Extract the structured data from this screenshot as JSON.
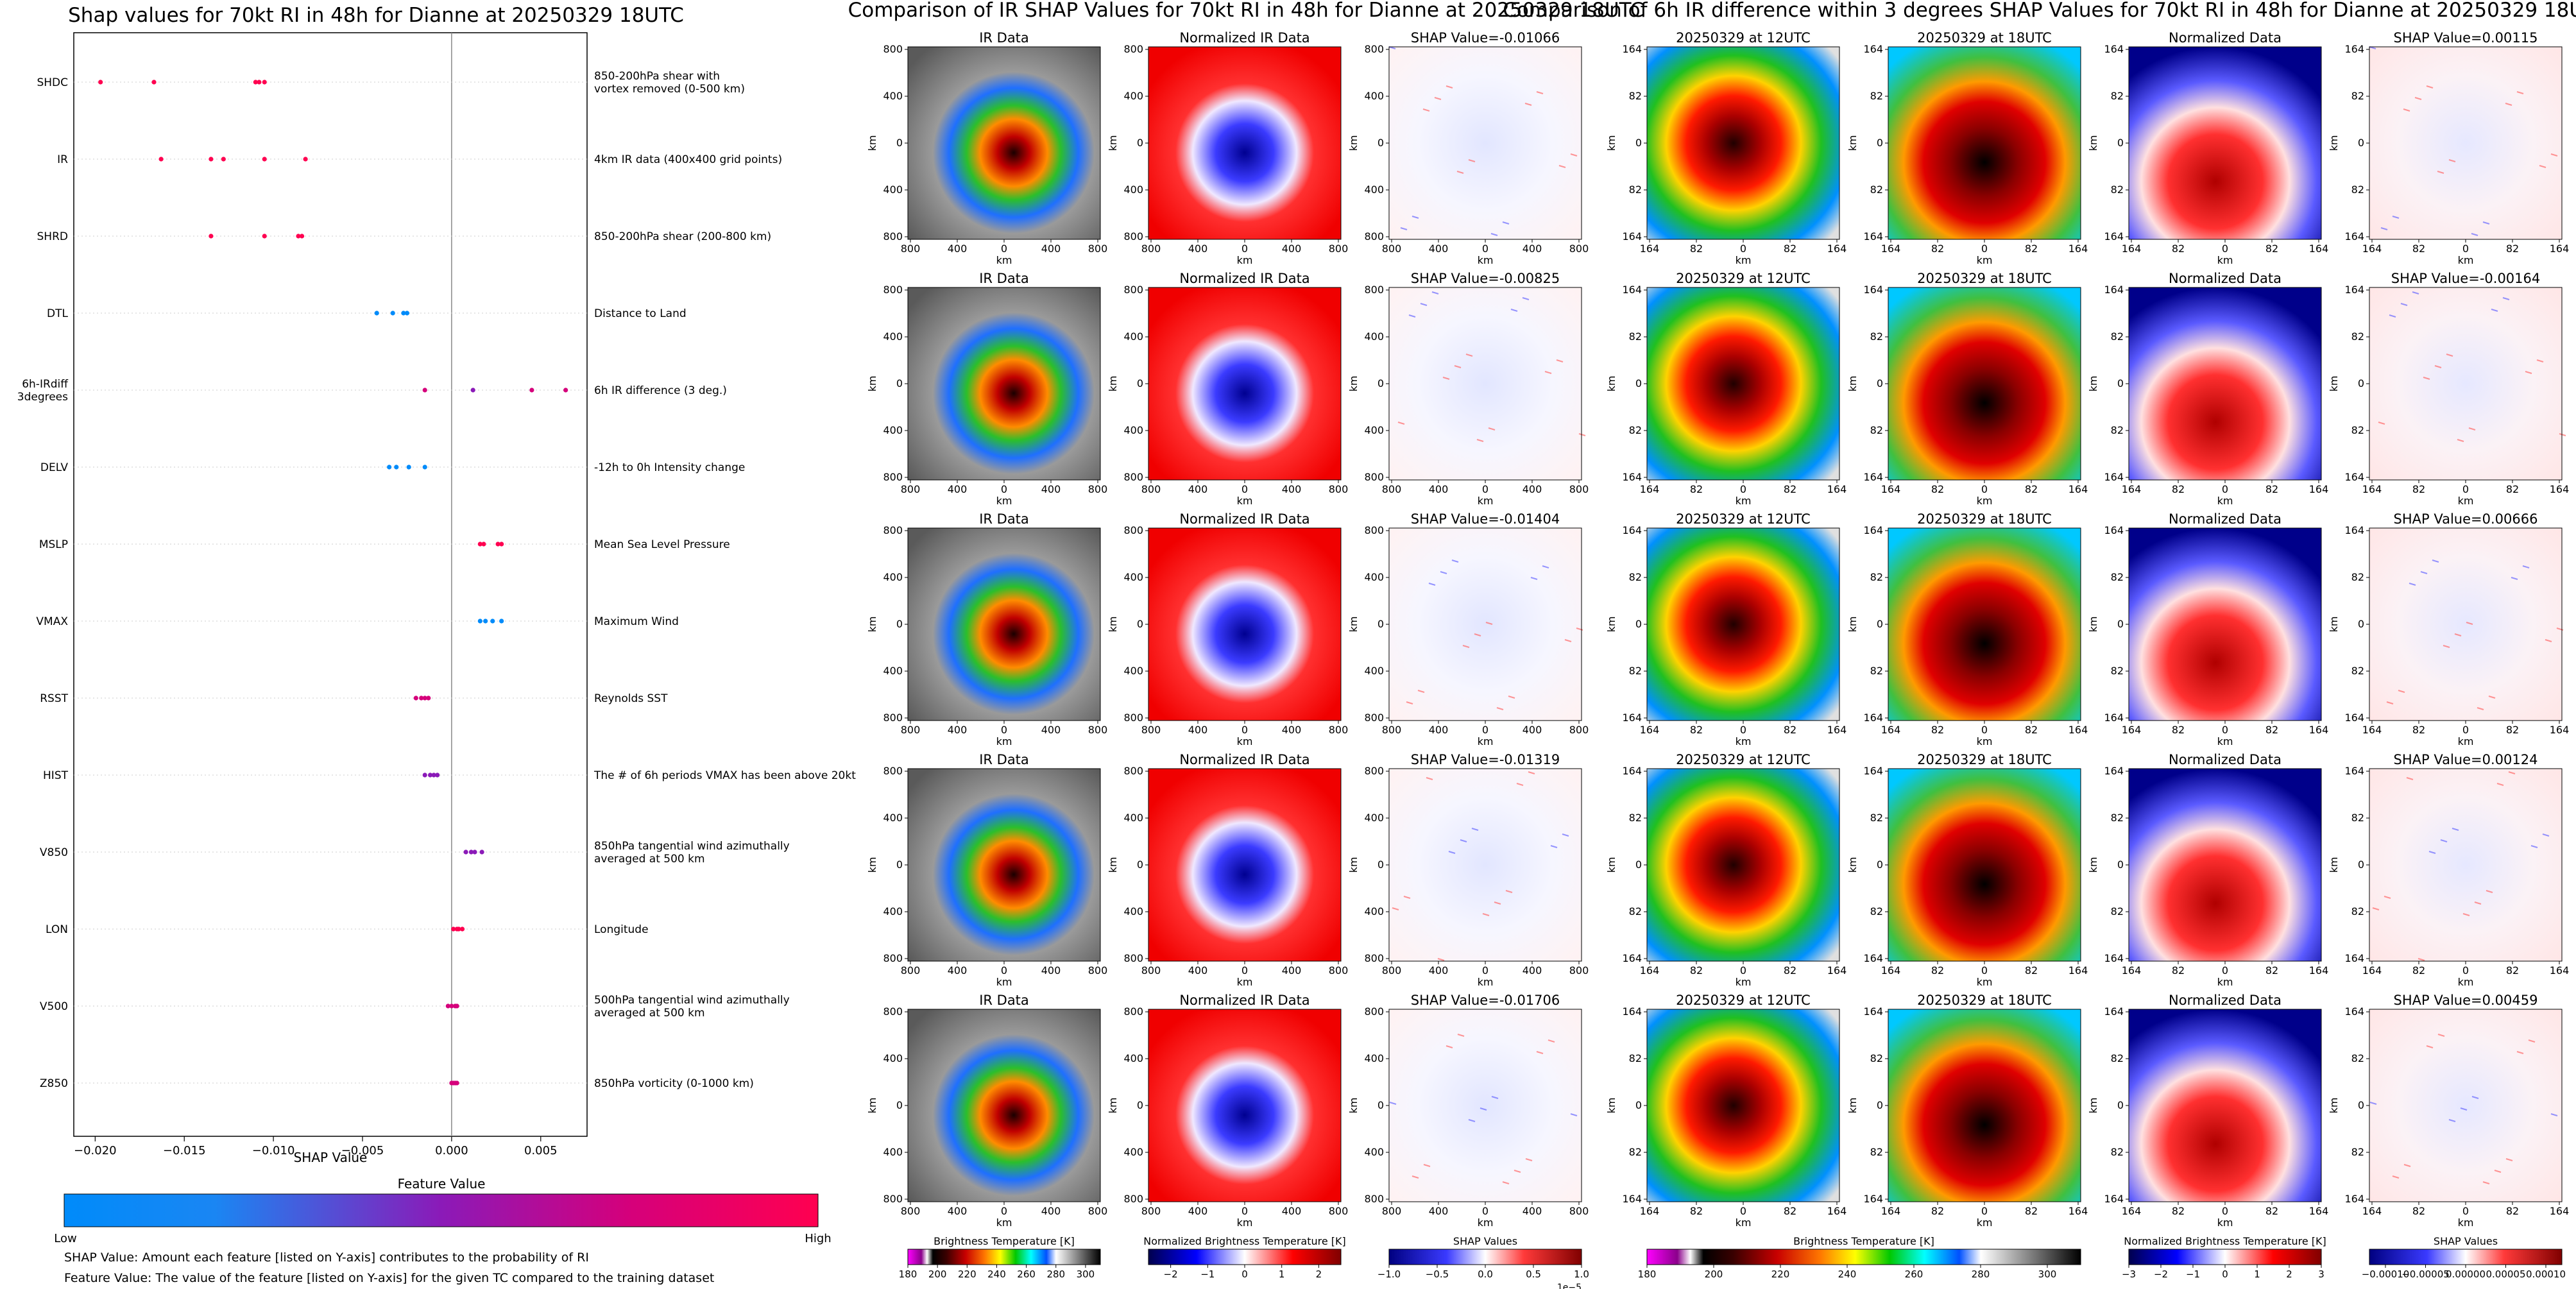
{
  "figure": {
    "left_title": "Shap values for 70kt RI in 48h for Dianne at 20250329 18UTC",
    "middle_title": "Comparison of IR SHAP Values for 70kt RI in 48h for Dianne at 20250329 18UTC",
    "right_title": "Comparison of 6h IR difference within 3 degrees SHAP Values for 70kt RI in 48h for Dianne at 20250329 18UTC"
  },
  "chart_data": [
    {
      "type": "scatter",
      "title": "Shap values for 70kt RI in 48h for Dianne at 20250329 18UTC",
      "xlabel": "SHAP Value",
      "xlim": [
        -0.0212,
        0.0076
      ],
      "xticks": [
        -0.02,
        -0.015,
        -0.01,
        -0.005,
        0.0,
        0.005
      ],
      "xtick_labels": [
        "−0.020",
        "−0.015",
        "−0.010",
        "−0.005",
        "0.000",
        "0.005"
      ],
      "grid": false,
      "colorbar": {
        "title": "Feature Value",
        "low_label": "Low",
        "high_label": "High"
      },
      "features": [
        {
          "name": "SHDC",
          "description": [
            "850-200hPa shear with",
            "vortex removed (0-500 km)"
          ],
          "values": [
            -0.0197,
            -0.0167,
            -0.011,
            -0.0108,
            -0.0105
          ],
          "colors": [
            "#ff0050",
            "#ff0050",
            "#ff0050",
            "#ff0050",
            "#ff0050"
          ]
        },
        {
          "name": "IR",
          "description": [
            "4km IR data (400x400 grid points)"
          ],
          "values": [
            -0.0163,
            -0.0135,
            -0.0128,
            -0.0105,
            -0.0082
          ],
          "colors": [
            "#ff0050",
            "#ff0050",
            "#ff0050",
            "#ff0050",
            "#ff0050"
          ]
        },
        {
          "name": "SHRD",
          "description": [
            "850-200hPa shear (200-800 km)"
          ],
          "values": [
            -0.0135,
            -0.0105,
            -0.0086,
            -0.0084
          ],
          "colors": [
            "#ff0050",
            "#ff0050",
            "#ff0050",
            "#ff0050"
          ]
        },
        {
          "name": "DTL",
          "description": [
            "Distance to Land"
          ],
          "values": [
            -0.0042,
            -0.0033,
            -0.0027,
            -0.0025
          ],
          "colors": [
            "#008bfa",
            "#008bfa",
            "#008bfa",
            "#008bfa"
          ]
        },
        {
          "name": "6h-IRdiff\n3degrees",
          "description": [
            "6h IR difference (3 deg.)"
          ],
          "values": [
            -0.0015,
            0.0012,
            0.0045,
            0.0064
          ],
          "colors": [
            "#d5007b",
            "#8b1ab8",
            "#d5007b",
            "#d5007b"
          ]
        },
        {
          "name": "DELV",
          "description": [
            "-12h to 0h Intensity change"
          ],
          "values": [
            -0.0035,
            -0.0031,
            -0.0024,
            -0.0015
          ],
          "colors": [
            "#008bfa",
            "#008bfa",
            "#008bfa",
            "#008bfa"
          ]
        },
        {
          "name": "MSLP",
          "description": [
            "Mean Sea Level Pressure"
          ],
          "values": [
            0.0016,
            0.0018,
            0.0026,
            0.0028
          ],
          "colors": [
            "#ff0050",
            "#ff0050",
            "#ff0050",
            "#ff0050"
          ]
        },
        {
          "name": "VMAX",
          "description": [
            "Maximum Wind"
          ],
          "values": [
            0.0016,
            0.0019,
            0.0023,
            0.0028
          ],
          "colors": [
            "#008bfa",
            "#008bfa",
            "#008bfa",
            "#008bfa"
          ]
        },
        {
          "name": "RSST",
          "description": [
            "Reynolds SST"
          ],
          "values": [
            -0.002,
            -0.0017,
            -0.0015,
            -0.0013
          ],
          "colors": [
            "#d5007b",
            "#d5007b",
            "#d5007b",
            "#d5007b"
          ]
        },
        {
          "name": "HIST",
          "description": [
            "The # of 6h periods VMAX has been above 20kt"
          ],
          "values": [
            -0.0015,
            -0.0012,
            -0.001,
            -0.0008
          ],
          "colors": [
            "#8b1ab8",
            "#8b1ab8",
            "#8b1ab8",
            "#8b1ab8"
          ]
        },
        {
          "name": "V850",
          "description": [
            "850hPa tangential wind azimuthally",
            "averaged at 500 km"
          ],
          "values": [
            0.0008,
            0.0011,
            0.0013,
            0.0017
          ],
          "colors": [
            "#8b1ab8",
            "#8b1ab8",
            "#8b1ab8",
            "#8b1ab8"
          ]
        },
        {
          "name": "LON",
          "description": [
            "Longitude"
          ],
          "values": [
            0.0001,
            0.0003,
            0.0004,
            0.0006
          ],
          "colors": [
            "#ff0050",
            "#ff0050",
            "#ff0050",
            "#ff0050"
          ]
        },
        {
          "name": "V500",
          "description": [
            "500hPa tangential wind azimuthally",
            "averaged at 500 km"
          ],
          "values": [
            -0.0002,
            0.0,
            0.0002,
            0.0003
          ],
          "colors": [
            "#d5007b",
            "#d5007b",
            "#d5007b",
            "#d5007b"
          ]
        },
        {
          "name": "Z850",
          "description": [
            "850hPa vorticity (0-1000 km)"
          ],
          "values": [
            0.0,
            0.0001,
            0.0002,
            0.0003
          ],
          "colors": [
            "#d5007b",
            "#d5007b",
            "#d5007b",
            "#d5007b"
          ]
        }
      ],
      "footnotes": [
        "SHAP Value: Amount each feature [listed on Y-axis] contributes to the probability of RI",
        "Feature Value: The value of the feature [listed on Y-axis] for the given TC compared to the training dataset"
      ]
    },
    {
      "type": "heatmap",
      "title": "Comparison of IR SHAP Values for 70kt RI in 48h for Dianne at 20250329 18UTC",
      "columns": [
        "IR Data",
        "Normalized IR Data",
        "SHAP"
      ],
      "shap_values": [
        -0.01066,
        -0.00825,
        -0.01404,
        -0.01319,
        -0.01706
      ],
      "shap_title_prefix": "SHAP Value=",
      "xlabel": "km",
      "ylabel": "km",
      "xtick_labels": [
        "800",
        "400",
        "0",
        "400",
        "800"
      ],
      "ytick_labels": [
        "800",
        "400",
        "0",
        "400",
        "800"
      ],
      "colorbars": [
        {
          "label": "Brightness Temperature [K]",
          "tick_labels": [
            "180",
            "200",
            "220",
            "240",
            "260",
            "280",
            "300"
          ],
          "range": [
            180,
            310
          ]
        },
        {
          "label": "Normalized Brightness Temperature [K]",
          "tick_labels": [
            "−2",
            "−1",
            "0",
            "1",
            "2"
          ],
          "range": [
            -2.6,
            2.6
          ]
        },
        {
          "label": "SHAP Values",
          "tick_labels": [
            "−1.0",
            "−0.5",
            "0.0",
            "0.5",
            "1.0"
          ],
          "range": [
            -1.0,
            1.0
          ],
          "offset_label": "1e−5"
        }
      ]
    },
    {
      "type": "heatmap",
      "title": "Comparison of 6h IR difference within 3 degrees SHAP Values for 70kt RI in 48h for Dianne at 20250329 18UTC",
      "columns": [
        "20250329 at 12UTC",
        "20250329 at 18UTC",
        "Normalized Data",
        "SHAP"
      ],
      "shap_values": [
        0.00115,
        -0.00164,
        0.00666,
        0.00124,
        0.00459
      ],
      "shap_title_prefix": "SHAP Value=",
      "xlabel": "km",
      "ylabel": "km",
      "xtick_labels": [
        "164",
        "82",
        "0",
        "82",
        "164"
      ],
      "ytick_labels": [
        "164",
        "82",
        "0",
        "82",
        "164"
      ],
      "colorbars": [
        {
          "label": "Brightness Temperature [K]",
          "tick_labels": [
            "180",
            "200",
            "220",
            "240",
            "260",
            "280",
            "300"
          ],
          "range": [
            180,
            310
          ]
        },
        {
          "label": "Normalized Brightness Temperature [K]",
          "tick_labels": [
            "−3",
            "−2",
            "−1",
            "0",
            "1",
            "2",
            "3"
          ],
          "range": [
            -3,
            3
          ]
        },
        {
          "label": "SHAP Values",
          "tick_labels": [
            "−0.00010",
            "−0.00005",
            "0.00000",
            "0.00005",
            "0.00010"
          ],
          "range": [
            -0.00012,
            0.00012
          ]
        }
      ]
    }
  ]
}
